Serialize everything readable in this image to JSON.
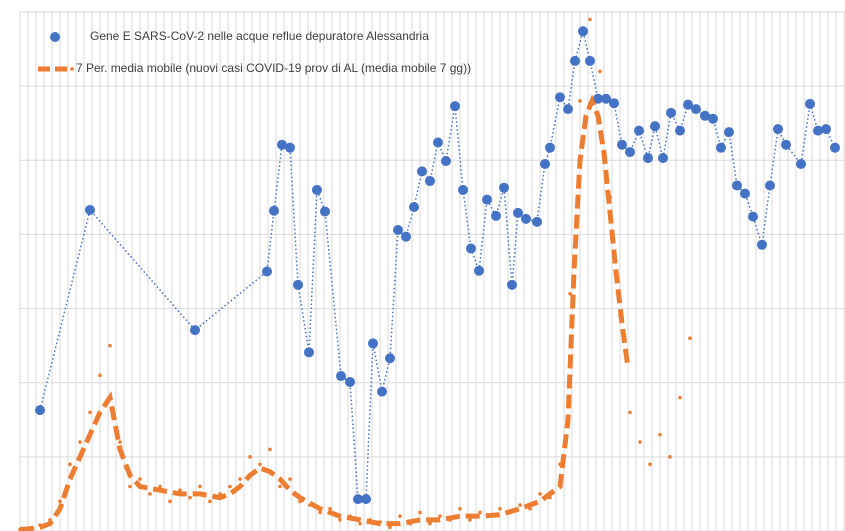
{
  "chart_data": {
    "type": "scatter",
    "xlim": [
      0,
      412.5
    ],
    "ylim": [
      0,
      7
    ],
    "yticks": [
      0,
      1,
      2,
      3,
      4,
      5,
      6,
      7
    ],
    "xticks": [
      0,
      4,
      8,
      12,
      16,
      20,
      24,
      28,
      32,
      36,
      40,
      44,
      48,
      52,
      56,
      60,
      64,
      68,
      72,
      76,
      80,
      84,
      88,
      92,
      96,
      100,
      104,
      108,
      112,
      116,
      120,
      124,
      128,
      132,
      136,
      140,
      144,
      148,
      152,
      156,
      160,
      164,
      168,
      172,
      176,
      180,
      184,
      188,
      192,
      196,
      200,
      204,
      208,
      212,
      216,
      220,
      224,
      228,
      232,
      236,
      240,
      244,
      248,
      252,
      256,
      260,
      264,
      268,
      272,
      276,
      280,
      284,
      288,
      292,
      296,
      300,
      304,
      308,
      312,
      316,
      320,
      324,
      328,
      332,
      336,
      340,
      344,
      348,
      352,
      356,
      360,
      364,
      368,
      372,
      376,
      380,
      384,
      388,
      392,
      396,
      400,
      404,
      408,
      412
    ],
    "grid": true,
    "legend": "top-left",
    "series": [
      {
        "name": "Gene E SARS-CoV-2 nelle acque reflue depuratore Alessandria",
        "color": "#4472c4",
        "style": "dots-dotted",
        "x": [
          10,
          35,
          87.5,
          123.5,
          127,
          131,
          135,
          139,
          144.5,
          148.5,
          152.5,
          160.5,
          165,
          169,
          173,
          176.5,
          181,
          185,
          189,
          193,
          197,
          201,
          205,
          209,
          213,
          217.5,
          221.5,
          225.5,
          229.5,
          233.5,
          238,
          242,
          246,
          249,
          253,
          258.5,
          262.5,
          265,
          270,
          274,
          277.5,
          281.5,
          285,
          289,
          293,
          297,
          301,
          305,
          309.5,
          314,
          317.5,
          321.5,
          325.5,
          330,
          334,
          338,
          342.5,
          346.5,
          350.5,
          354.5,
          358.5,
          362.5,
          366.5,
          371,
          375,
          379,
          383,
          390.5,
          395,
          399,
          403,
          407.5
        ],
        "values": [
          1.63,
          4.33,
          2.71,
          3.5,
          4.32,
          5.21,
          5.17,
          3.32,
          2.41,
          4.6,
          4.31,
          2.09,
          2.01,
          0.43,
          0.43,
          2.53,
          1.88,
          2.33,
          4.06,
          3.97,
          4.37,
          4.85,
          4.72,
          5.24,
          4.99,
          5.73,
          4.6,
          3.81,
          3.51,
          4.47,
          4.25,
          4.63,
          3.32,
          4.29,
          4.21,
          4.17,
          4.95,
          5.17,
          5.85,
          5.69,
          6.34,
          6.74,
          6.34,
          5.83,
          5.83,
          5.77,
          5.21,
          5.11,
          5.4,
          5.03,
          5.46,
          5.03,
          5.64,
          5.4,
          5.75,
          5.69,
          5.6,
          5.56,
          5.17,
          5.38,
          4.66,
          4.55,
          4.24,
          3.86,
          4.66,
          5.42,
          5.21,
          4.95,
          5.76,
          5.4,
          5.42,
          5.17
        ]
      },
      {
        "name": "7 Per. media mobile (nuovi casi COVID-19 prov di AL (media mobile 7 gg))",
        "color": "#ed7d31",
        "style": "dashed-line",
        "x": [
          0,
          5,
          10,
          15,
          20,
          25,
          30,
          35,
          40,
          45,
          50,
          55,
          60,
          70,
          80,
          90,
          100,
          105,
          110,
          115,
          120,
          125,
          130,
          135,
          140,
          150,
          160,
          170,
          180,
          190,
          200,
          210,
          220,
          230,
          240,
          250,
          260,
          270,
          274,
          277,
          280,
          283,
          286,
          289,
          292,
          295,
          298,
          301,
          304
        ],
        "values": [
          0.02,
          0.03,
          0.05,
          0.1,
          0.3,
          0.7,
          1.0,
          1.3,
          1.6,
          1.8,
          1.1,
          0.75,
          0.6,
          0.55,
          0.5,
          0.5,
          0.45,
          0.5,
          0.6,
          0.75,
          0.85,
          0.8,
          0.7,
          0.55,
          0.45,
          0.3,
          0.2,
          0.15,
          0.1,
          0.1,
          0.15,
          0.15,
          0.2,
          0.2,
          0.22,
          0.3,
          0.4,
          0.6,
          1.5,
          3.5,
          5.0,
          5.6,
          5.8,
          5.6,
          5.1,
          4.3,
          3.5,
          2.8,
          2.2
        ]
      },
      {
        "color": "#ed7d31",
        "style": "small-dots",
        "x": [
          0,
          5,
          10,
          15,
          20,
          25,
          30,
          35,
          40,
          45,
          50,
          55,
          60,
          65,
          70,
          75,
          80,
          85,
          90,
          95,
          100,
          105,
          110,
          115,
          120,
          125,
          130,
          135,
          140,
          145,
          150,
          155,
          160,
          165,
          170,
          175,
          180,
          185,
          190,
          195,
          200,
          205,
          210,
          215,
          220,
          225,
          230,
          235,
          240,
          245,
          250,
          255,
          260,
          265,
          270,
          275,
          280,
          285,
          290,
          295,
          300,
          305,
          310,
          315,
          320,
          325,
          330,
          335
        ],
        "values": [
          0.02,
          0.04,
          0.08,
          0.15,
          0.4,
          0.9,
          1.2,
          1.6,
          2.1,
          2.5,
          1.2,
          0.6,
          0.7,
          0.5,
          0.6,
          0.4,
          0.55,
          0.45,
          0.6,
          0.4,
          0.5,
          0.6,
          0.7,
          1.0,
          0.9,
          1.1,
          0.6,
          0.7,
          0.4,
          0.35,
          0.25,
          0.3,
          0.15,
          0.2,
          0.1,
          0.15,
          0.12,
          0.05,
          0.2,
          0.1,
          0.25,
          0.1,
          0.2,
          0.15,
          0.3,
          0.15,
          0.25,
          0.2,
          0.3,
          0.25,
          0.35,
          0.3,
          0.5,
          0.45,
          0.9,
          3.2,
          5.8,
          6.9,
          6.2,
          4.5,
          2.9,
          1.6,
          1.2,
          0.9,
          1.3,
          1.0,
          1.8,
          2.6
        ]
      }
    ]
  }
}
